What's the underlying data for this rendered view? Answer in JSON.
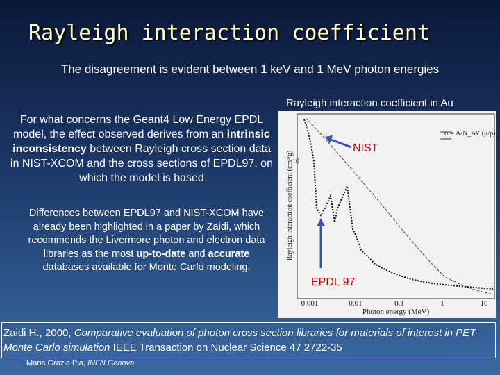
{
  "title": "Rayleigh interaction coefficient",
  "subtitle": "The disagreement is evident between 1 keV and 1 MeV photon energies",
  "left": {
    "paragraph1": [
      "For what concerns the Geant4 Low Energy EPDL model, the effect observed derives from an ",
      "intrinsic inconsistency",
      " between Rayleigh cross section data in NIST-XCOM and the cross sections of EPDL97, on which the model is based"
    ],
    "paragraph2": [
      "Differences between EPDL97 and NIST-XCOM have already been highlighted in a paper by Zaidi, which recommends the Livermore photon and electron data libraries as the most ",
      "up-to-date",
      " and ",
      "accurate",
      " databases available for Monte Carlo modeling."
    ]
  },
  "figure": {
    "caption": "Rayleigh interaction coefficient in Au",
    "nist_label": "NIST",
    "epdl_label": "EPDL 97",
    "formula": "σ = A/N_AV (μ/ρ)",
    "y_axis_label": "Rayleigh interaction coefficient (cm²/g)",
    "y_tick": "10",
    "x_axis_label": "Photon energy (MeV)",
    "x_ticks": [
      "0.001",
      "0.01",
      "0.1",
      "1",
      "10"
    ]
  },
  "reference": [
    "Zaidi H., 2000, ",
    "Comparative evaluation of photon cross section libraries for materials of interest in PET Monte Carlo simulation",
    " IEEE Transaction on Nuclear Science 47 2722-35"
  ],
  "footer": [
    "Maria Grazia Pia, ",
    "INFN Genova"
  ]
}
